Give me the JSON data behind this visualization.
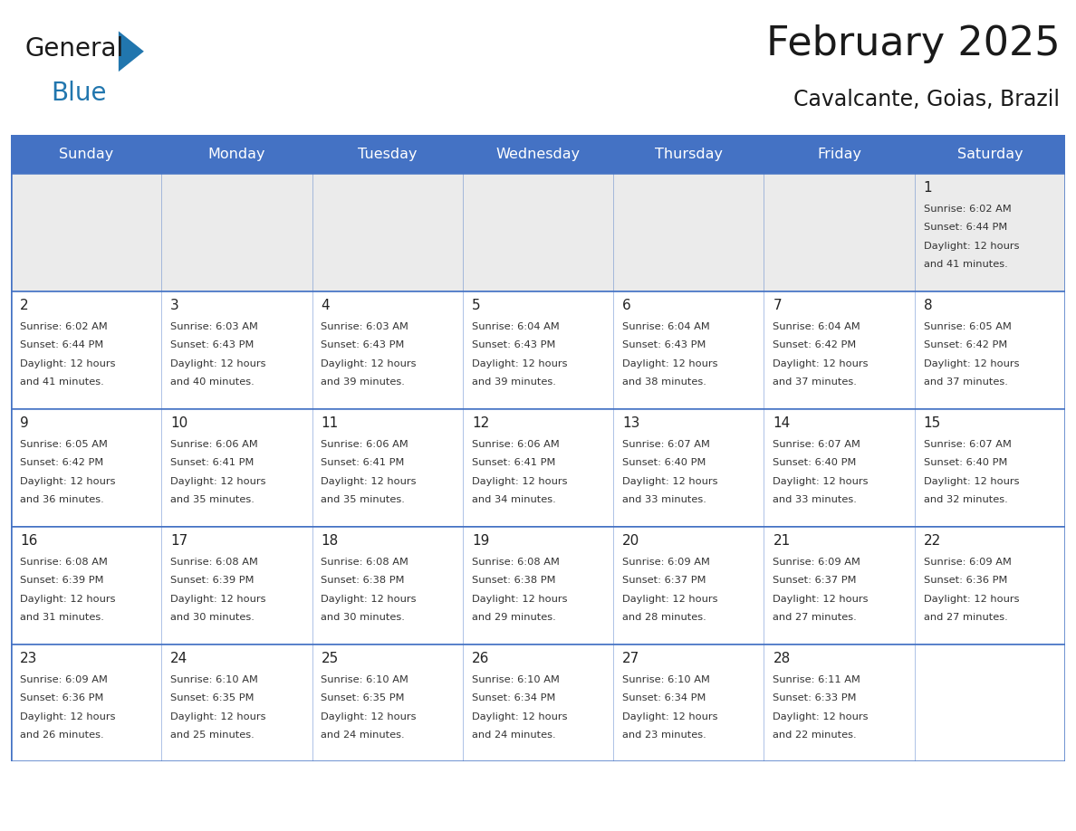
{
  "title": "February 2025",
  "subtitle": "Cavalcante, Goias, Brazil",
  "header_bg": "#4472C4",
  "header_text_color": "#FFFFFF",
  "row0_bg": "#EBEBEB",
  "cell_bg": "#FFFFFF",
  "border_color": "#4472C4",
  "cell_border_color": "#4472C4",
  "day_names": [
    "Sunday",
    "Monday",
    "Tuesday",
    "Wednesday",
    "Thursday",
    "Friday",
    "Saturday"
  ],
  "title_color": "#1a1a1a",
  "subtitle_color": "#1a1a1a",
  "logo_general_color": "#1a1a1a",
  "logo_blue_color": "#2176AE",
  "days": [
    {
      "day": 1,
      "col": 6,
      "row": 0,
      "sunrise": "6:02 AM",
      "sunset": "6:44 PM",
      "daylight_hours": 12,
      "daylight_minutes": 41
    },
    {
      "day": 2,
      "col": 0,
      "row": 1,
      "sunrise": "6:02 AM",
      "sunset": "6:44 PM",
      "daylight_hours": 12,
      "daylight_minutes": 41
    },
    {
      "day": 3,
      "col": 1,
      "row": 1,
      "sunrise": "6:03 AM",
      "sunset": "6:43 PM",
      "daylight_hours": 12,
      "daylight_minutes": 40
    },
    {
      "day": 4,
      "col": 2,
      "row": 1,
      "sunrise": "6:03 AM",
      "sunset": "6:43 PM",
      "daylight_hours": 12,
      "daylight_minutes": 39
    },
    {
      "day": 5,
      "col": 3,
      "row": 1,
      "sunrise": "6:04 AM",
      "sunset": "6:43 PM",
      "daylight_hours": 12,
      "daylight_minutes": 39
    },
    {
      "day": 6,
      "col": 4,
      "row": 1,
      "sunrise": "6:04 AM",
      "sunset": "6:43 PM",
      "daylight_hours": 12,
      "daylight_minutes": 38
    },
    {
      "day": 7,
      "col": 5,
      "row": 1,
      "sunrise": "6:04 AM",
      "sunset": "6:42 PM",
      "daylight_hours": 12,
      "daylight_minutes": 37
    },
    {
      "day": 8,
      "col": 6,
      "row": 1,
      "sunrise": "6:05 AM",
      "sunset": "6:42 PM",
      "daylight_hours": 12,
      "daylight_minutes": 37
    },
    {
      "day": 9,
      "col": 0,
      "row": 2,
      "sunrise": "6:05 AM",
      "sunset": "6:42 PM",
      "daylight_hours": 12,
      "daylight_minutes": 36
    },
    {
      "day": 10,
      "col": 1,
      "row": 2,
      "sunrise": "6:06 AM",
      "sunset": "6:41 PM",
      "daylight_hours": 12,
      "daylight_minutes": 35
    },
    {
      "day": 11,
      "col": 2,
      "row": 2,
      "sunrise": "6:06 AM",
      "sunset": "6:41 PM",
      "daylight_hours": 12,
      "daylight_minutes": 35
    },
    {
      "day": 12,
      "col": 3,
      "row": 2,
      "sunrise": "6:06 AM",
      "sunset": "6:41 PM",
      "daylight_hours": 12,
      "daylight_minutes": 34
    },
    {
      "day": 13,
      "col": 4,
      "row": 2,
      "sunrise": "6:07 AM",
      "sunset": "6:40 PM",
      "daylight_hours": 12,
      "daylight_minutes": 33
    },
    {
      "day": 14,
      "col": 5,
      "row": 2,
      "sunrise": "6:07 AM",
      "sunset": "6:40 PM",
      "daylight_hours": 12,
      "daylight_minutes": 33
    },
    {
      "day": 15,
      "col": 6,
      "row": 2,
      "sunrise": "6:07 AM",
      "sunset": "6:40 PM",
      "daylight_hours": 12,
      "daylight_minutes": 32
    },
    {
      "day": 16,
      "col": 0,
      "row": 3,
      "sunrise": "6:08 AM",
      "sunset": "6:39 PM",
      "daylight_hours": 12,
      "daylight_minutes": 31
    },
    {
      "day": 17,
      "col": 1,
      "row": 3,
      "sunrise": "6:08 AM",
      "sunset": "6:39 PM",
      "daylight_hours": 12,
      "daylight_minutes": 30
    },
    {
      "day": 18,
      "col": 2,
      "row": 3,
      "sunrise": "6:08 AM",
      "sunset": "6:38 PM",
      "daylight_hours": 12,
      "daylight_minutes": 30
    },
    {
      "day": 19,
      "col": 3,
      "row": 3,
      "sunrise": "6:08 AM",
      "sunset": "6:38 PM",
      "daylight_hours": 12,
      "daylight_minutes": 29
    },
    {
      "day": 20,
      "col": 4,
      "row": 3,
      "sunrise": "6:09 AM",
      "sunset": "6:37 PM",
      "daylight_hours": 12,
      "daylight_minutes": 28
    },
    {
      "day": 21,
      "col": 5,
      "row": 3,
      "sunrise": "6:09 AM",
      "sunset": "6:37 PM",
      "daylight_hours": 12,
      "daylight_minutes": 27
    },
    {
      "day": 22,
      "col": 6,
      "row": 3,
      "sunrise": "6:09 AM",
      "sunset": "6:36 PM",
      "daylight_hours": 12,
      "daylight_minutes": 27
    },
    {
      "day": 23,
      "col": 0,
      "row": 4,
      "sunrise": "6:09 AM",
      "sunset": "6:36 PM",
      "daylight_hours": 12,
      "daylight_minutes": 26
    },
    {
      "day": 24,
      "col": 1,
      "row": 4,
      "sunrise": "6:10 AM",
      "sunset": "6:35 PM",
      "daylight_hours": 12,
      "daylight_minutes": 25
    },
    {
      "day": 25,
      "col": 2,
      "row": 4,
      "sunrise": "6:10 AM",
      "sunset": "6:35 PM",
      "daylight_hours": 12,
      "daylight_minutes": 24
    },
    {
      "day": 26,
      "col": 3,
      "row": 4,
      "sunrise": "6:10 AM",
      "sunset": "6:34 PM",
      "daylight_hours": 12,
      "daylight_minutes": 24
    },
    {
      "day": 27,
      "col": 4,
      "row": 4,
      "sunrise": "6:10 AM",
      "sunset": "6:34 PM",
      "daylight_hours": 12,
      "daylight_minutes": 23
    },
    {
      "day": 28,
      "col": 5,
      "row": 4,
      "sunrise": "6:11 AM",
      "sunset": "6:33 PM",
      "daylight_hours": 12,
      "daylight_minutes": 22
    }
  ]
}
